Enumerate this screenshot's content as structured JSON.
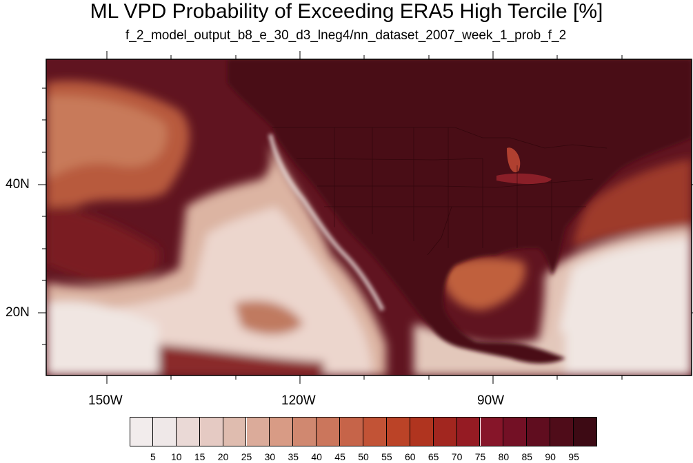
{
  "title": "ML VPD Probability of Exceeding ERA5 High Tercile [%]",
  "subtitle": "f_2_model_output_b8_e_30_d3_lneg4/nn_dataset_2007_week_1_prob_f_2",
  "map": {
    "lat_range": [
      10,
      59
    ],
    "lon_range": [
      -160,
      -62
    ],
    "lat_labels": [
      "40N",
      "20N"
    ],
    "lon_labels": [
      "150W",
      "120W",
      "90W"
    ]
  },
  "colorbar": {
    "labels": [
      "5",
      "10",
      "15",
      "20",
      "25",
      "30",
      "35",
      "40",
      "45",
      "50",
      "55",
      "60",
      "65",
      "70",
      "75",
      "80",
      "85",
      "90",
      "95"
    ],
    "colors": [
      "#efe8e8",
      "#ead9d6",
      "#e5cac3",
      "#dfbcaf",
      "#dbab9a",
      "#d89b85",
      "#d08870",
      "#cb765c",
      "#c66449",
      "#c25336",
      "#bb4327",
      "#b0341f",
      "#a2261f",
      "#951b23",
      "#861529",
      "#731025",
      "#600d1f",
      "#4f0c19",
      "#3d0a14"
    ]
  }
}
